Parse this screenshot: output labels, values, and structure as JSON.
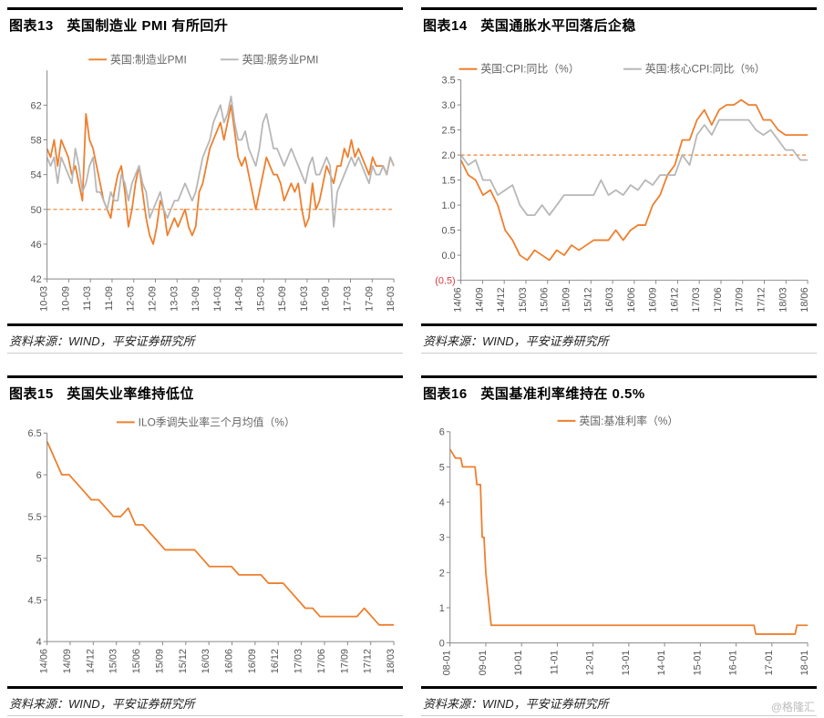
{
  "watermark": "@格隆汇",
  "panels": {
    "chart13": {
      "type": "line",
      "title_num": "图表13",
      "title_text": "英国制造业 PMI 有所回升",
      "footer": "资料来源：WIND，平安证券研究所",
      "legend": [
        {
          "label": "英国:制造业PMI",
          "color": "#ee7f2d"
        },
        {
          "label": "英国:服务业PMI",
          "color": "#b7b7b7"
        }
      ],
      "x_labels": [
        "10-03",
        "10-09",
        "11-03",
        "11-09",
        "12-03",
        "12-09",
        "13-03",
        "13-09",
        "14-03",
        "14-09",
        "15-03",
        "15-09",
        "16-03",
        "16-09",
        "17-03",
        "17-09",
        "18-03"
      ],
      "ylim": [
        42,
        66
      ],
      "yticks": [
        42,
        46,
        50,
        54,
        58,
        62
      ],
      "ref_line": {
        "y": 50,
        "color": "#ee7f2d",
        "dash": "4,3"
      },
      "series": [
        {
          "color": "#ee7f2d",
          "width": 1.8,
          "y": [
            57,
            56,
            58,
            55,
            58,
            57,
            56,
            54,
            55,
            53,
            51,
            61,
            58,
            57,
            55,
            53,
            51,
            50,
            49,
            52,
            54,
            55,
            52,
            48,
            50,
            53,
            55,
            52,
            49,
            47,
            46,
            48,
            51,
            50,
            47,
            48,
            49,
            48,
            49,
            50,
            48,
            47,
            48,
            52,
            53,
            55,
            57,
            58,
            59,
            60,
            58,
            60,
            62,
            59,
            56,
            55,
            56,
            54,
            52,
            50,
            52,
            54,
            56,
            55,
            54,
            54,
            53,
            51,
            52,
            53,
            52,
            53,
            50,
            48,
            49,
            53,
            50,
            51,
            53,
            55,
            54,
            53,
            55,
            55,
            57,
            56,
            58,
            56,
            57,
            56,
            55,
            54,
            56,
            55,
            55,
            55,
            54,
            56,
            55
          ]
        },
        {
          "color": "#b7b7b7",
          "width": 1.8,
          "y": [
            56,
            55,
            56,
            53,
            56,
            55,
            54,
            53,
            57,
            55,
            52,
            53,
            55,
            56,
            52,
            52,
            51,
            50,
            52,
            51,
            51,
            54,
            53,
            51,
            53,
            54,
            55,
            53,
            52,
            49,
            50,
            51,
            52,
            50,
            49,
            50,
            51,
            51,
            52,
            53,
            52,
            51,
            52,
            54,
            56,
            57,
            58,
            60,
            61,
            62,
            60,
            61,
            63,
            60,
            58,
            58,
            59,
            57,
            56,
            55,
            57,
            60,
            61,
            59,
            57,
            57,
            56,
            55,
            56,
            57,
            56,
            55,
            54,
            53,
            55,
            56,
            54,
            54,
            55,
            56,
            55,
            48,
            52,
            53,
            54,
            55,
            56,
            55,
            56,
            55,
            54,
            53,
            55,
            54,
            54,
            55,
            54,
            56,
            55
          ]
        }
      ],
      "background_color": "#ffffff",
      "axis_color": "#888",
      "tick_font_size": 11
    },
    "chart14": {
      "type": "line",
      "title_num": "图表14",
      "title_text": "英国通胀水平回落后企稳",
      "footer": "资料来源：WIND，平安证券研究所",
      "legend": [
        {
          "label": "英国:CPI:同比（%）",
          "color": "#ee7f2d"
        },
        {
          "label": "英国:核心CPI:同比（%）",
          "color": "#b7b7b7"
        }
      ],
      "x_labels": [
        "14/06",
        "14/09",
        "14/12",
        "15/03",
        "15/06",
        "15/09",
        "15/12",
        "16/03",
        "16/06",
        "16/09",
        "16/12",
        "17/03",
        "17/06",
        "17/09",
        "17/12",
        "18/03",
        "18/06"
      ],
      "ylim": [
        -0.5,
        3.5
      ],
      "yticks": [
        -0.5,
        0.0,
        0.5,
        1.0,
        1.5,
        2.0,
        2.5,
        3.0,
        3.5
      ],
      "ytick_labels": [
        "(0.5)",
        "0.0",
        "0.5",
        "1.0",
        "1.5",
        "2.0",
        "2.5",
        "3.0",
        "3.5"
      ],
      "neg_tick_color": "#d73a3a",
      "ref_line": {
        "y": 2.0,
        "color": "#ee7f2d",
        "dash": "4,3"
      },
      "series": [
        {
          "color": "#ee7f2d",
          "width": 1.8,
          "y": [
            1.9,
            1.6,
            1.5,
            1.2,
            1.3,
            1.0,
            0.5,
            0.3,
            0.0,
            -0.1,
            0.1,
            0.0,
            -0.1,
            0.1,
            0.0,
            0.2,
            0.1,
            0.2,
            0.3,
            0.3,
            0.3,
            0.5,
            0.3,
            0.5,
            0.6,
            0.6,
            1.0,
            1.2,
            1.6,
            1.8,
            2.3,
            2.3,
            2.7,
            2.9,
            2.6,
            2.9,
            3.0,
            3.0,
            3.1,
            3.0,
            3.0,
            2.7,
            2.7,
            2.5,
            2.4,
            2.4,
            2.4,
            2.4
          ]
        },
        {
          "color": "#b7b7b7",
          "width": 1.8,
          "y": [
            2.0,
            1.8,
            1.9,
            1.5,
            1.5,
            1.2,
            1.3,
            1.4,
            1.0,
            0.8,
            0.8,
            1.0,
            0.8,
            1.0,
            1.2,
            1.2,
            1.2,
            1.2,
            1.2,
            1.5,
            1.2,
            1.3,
            1.2,
            1.4,
            1.3,
            1.5,
            1.4,
            1.6,
            1.6,
            1.6,
            2.0,
            1.8,
            2.4,
            2.6,
            2.4,
            2.7,
            2.7,
            2.7,
            2.7,
            2.7,
            2.5,
            2.4,
            2.5,
            2.3,
            2.1,
            2.1,
            1.9,
            1.9
          ]
        }
      ],
      "background_color": "#ffffff",
      "axis_color": "#888",
      "tick_font_size": 11
    },
    "chart15": {
      "type": "line",
      "title_num": "图表15",
      "title_text": "英国失业率维持低位",
      "footer": "资料来源：WIND，平安证券研究所",
      "legend": [
        {
          "label": "ILO季调失业率三个月均值（%）",
          "color": "#ee7f2d"
        }
      ],
      "x_labels": [
        "14/06",
        "14/09",
        "14/12",
        "15/03",
        "15/06",
        "15/09",
        "15/12",
        "16/03",
        "16/06",
        "16/09",
        "16/12",
        "17/03",
        "17/06",
        "17/09",
        "17/12",
        "18/03"
      ],
      "ylim": [
        4.0,
        6.5
      ],
      "yticks": [
        4.0,
        4.5,
        5.0,
        5.5,
        6.0,
        6.5
      ],
      "series": [
        {
          "color": "#ee7f2d",
          "width": 1.8,
          "y": [
            6.4,
            6.2,
            6.0,
            6.0,
            5.9,
            5.8,
            5.7,
            5.7,
            5.6,
            5.5,
            5.5,
            5.6,
            5.4,
            5.4,
            5.3,
            5.2,
            5.1,
            5.1,
            5.1,
            5.1,
            5.1,
            5.0,
            4.9,
            4.9,
            4.9,
            4.9,
            4.8,
            4.8,
            4.8,
            4.8,
            4.7,
            4.7,
            4.7,
            4.6,
            4.5,
            4.4,
            4.4,
            4.3,
            4.3,
            4.3,
            4.3,
            4.3,
            4.3,
            4.4,
            4.3,
            4.2,
            4.2,
            4.2
          ]
        }
      ],
      "background_color": "#ffffff",
      "axis_color": "#888",
      "tick_font_size": 11
    },
    "chart16": {
      "type": "step",
      "title_num": "图表16",
      "title_text": "英国基准利率维持在 0.5%",
      "footer": "资料来源：WIND，平安证券研究所",
      "legend": [
        {
          "label": "英国:基准利率（%）",
          "color": "#ee7f2d"
        }
      ],
      "x_labels": [
        "08-01",
        "09-01",
        "10-01",
        "11-01",
        "12-01",
        "13-01",
        "14-01",
        "15-01",
        "16-01",
        "17-01",
        "18-01"
      ],
      "ylim": [
        0,
        6
      ],
      "yticks": [
        0,
        1,
        2,
        3,
        4,
        5,
        6
      ],
      "series": [
        {
          "color": "#ee7f2d",
          "width": 1.8,
          "points": [
            [
              0.0,
              5.5
            ],
            [
              0.015,
              5.25
            ],
            [
              0.03,
              5.25
            ],
            [
              0.035,
              5.0
            ],
            [
              0.07,
              5.0
            ],
            [
              0.075,
              4.5
            ],
            [
              0.085,
              4.5
            ],
            [
              0.09,
              3.0
            ],
            [
              0.095,
              3.0
            ],
            [
              0.1,
              2.0
            ],
            [
              0.105,
              1.5
            ],
            [
              0.11,
              1.0
            ],
            [
              0.115,
              0.5
            ],
            [
              0.85,
              0.5
            ],
            [
              0.855,
              0.25
            ],
            [
              0.965,
              0.25
            ],
            [
              0.97,
              0.5
            ],
            [
              1.0,
              0.5
            ]
          ]
        }
      ],
      "background_color": "#ffffff",
      "axis_color": "#888",
      "tick_font_size": 11
    }
  }
}
